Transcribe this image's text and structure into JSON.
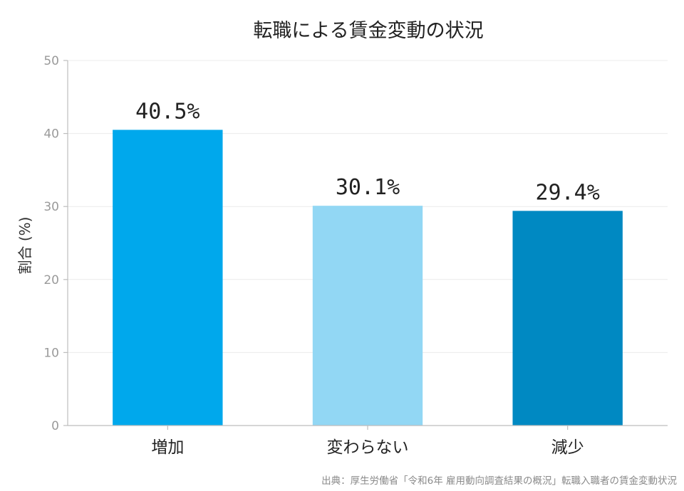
{
  "chart_data": {
    "type": "bar",
    "title": "転職による賃金変動の状況",
    "ylabel": "割合 (%)",
    "xlabel": "",
    "categories": [
      "増加",
      "変わらない",
      "減少"
    ],
    "values": [
      40.5,
      30.1,
      29.4
    ],
    "data_labels": [
      "40.5%",
      "30.1%",
      "29.4%"
    ],
    "colors": [
      "#00a8ec",
      "#92d7f4",
      "#0089c2"
    ],
    "ylim": [
      0,
      50
    ],
    "yticks": [
      0,
      10,
      20,
      30,
      40,
      50
    ],
    "grid": true,
    "legend": "none"
  },
  "source": "出典：厚生労働省「令和6年 雇用動向調査結果の概況」転職入職者の賃金変動状況"
}
